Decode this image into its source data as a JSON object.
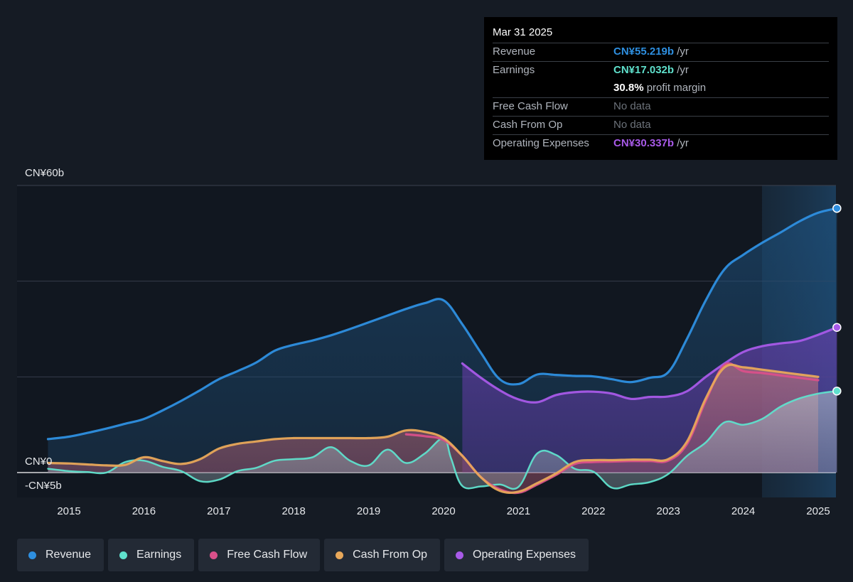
{
  "tooltip": {
    "date": "Mar 31 2025",
    "rows": [
      {
        "label": "Revenue",
        "value": "CN¥55.219b",
        "unit": " /yr",
        "color": "#2e8fe0"
      },
      {
        "label": "Earnings",
        "value": "CN¥17.032b",
        "unit": " /yr",
        "color": "#5fe0cc"
      },
      {
        "label": "",
        "value": "30.8%",
        "unit": " profit margin",
        "color": "#ffffff"
      },
      {
        "label": "Free Cash Flow",
        "value": "No data",
        "unit": "",
        "color": "#6c727a"
      },
      {
        "label": "Cash From Op",
        "value": "No data",
        "unit": "",
        "color": "#6c727a"
      },
      {
        "label": "Operating Expenses",
        "value": "CN¥30.337b",
        "unit": " /yr",
        "color": "#a85ae8"
      }
    ]
  },
  "chart_data": {
    "type": "area",
    "y_tick_labels": [
      "CN¥60b",
      "CN¥0",
      "-CN¥5b"
    ],
    "x_tick_labels": [
      "2015",
      "2016",
      "2017",
      "2018",
      "2019",
      "2020",
      "2021",
      "2022",
      "2023",
      "2024",
      "2025"
    ],
    "ylim": [
      -5,
      60
    ],
    "xlim": [
      2014.5,
      2025.25
    ],
    "grid": true,
    "legend_position": "bottom",
    "series": [
      {
        "name": "Revenue",
        "color": "#2e8fe0",
        "x": [
          2014.72,
          2015.0,
          2015.25,
          2015.5,
          2015.75,
          2016.0,
          2016.25,
          2016.5,
          2016.75,
          2017.0,
          2017.25,
          2017.5,
          2017.75,
          2018.0,
          2018.25,
          2018.5,
          2018.75,
          2019.0,
          2019.25,
          2019.5,
          2019.75,
          2020.0,
          2020.25,
          2020.5,
          2020.75,
          2021.0,
          2021.25,
          2021.5,
          2021.75,
          2022.0,
          2022.25,
          2022.5,
          2022.75,
          2023.0,
          2023.25,
          2023.5,
          2023.75,
          2024.0,
          2024.25,
          2024.5,
          2024.75,
          2025.0,
          2025.25
        ],
        "values": [
          7.0,
          7.5,
          8.3,
          9.2,
          10.2,
          11.2,
          13.0,
          15.0,
          17.2,
          19.5,
          21.2,
          23.0,
          25.5,
          26.7,
          27.6,
          28.7,
          30.0,
          31.4,
          32.8,
          34.2,
          35.4,
          36.0,
          31.0,
          25.0,
          19.5,
          18.5,
          20.5,
          20.4,
          20.2,
          20.1,
          19.5,
          18.9,
          19.8,
          21.0,
          28.0,
          36.0,
          42.5,
          45.5,
          48.0,
          50.2,
          52.5,
          54.3,
          55.219
        ]
      },
      {
        "name": "Earnings",
        "color": "#5fe0cc",
        "x": [
          2014.72,
          2015.0,
          2015.25,
          2015.5,
          2015.75,
          2016.0,
          2016.25,
          2016.5,
          2016.75,
          2017.0,
          2017.25,
          2017.5,
          2017.75,
          2018.0,
          2018.25,
          2018.5,
          2018.75,
          2019.0,
          2019.25,
          2019.5,
          2019.75,
          2020.0,
          2020.1,
          2020.25,
          2020.5,
          2020.75,
          2021.0,
          2021.25,
          2021.5,
          2021.75,
          2022.0,
          2022.25,
          2022.5,
          2022.75,
          2023.0,
          2023.25,
          2023.5,
          2023.75,
          2024.0,
          2024.25,
          2024.5,
          2024.75,
          2025.0,
          2025.25
        ],
        "values": [
          0.8,
          0.3,
          0.1,
          0.0,
          2.2,
          2.5,
          1.2,
          0.3,
          -1.8,
          -1.5,
          0.3,
          1.0,
          2.5,
          2.8,
          3.2,
          5.3,
          2.5,
          1.5,
          4.8,
          2.0,
          4.0,
          7.2,
          3.0,
          -2.8,
          -2.9,
          -2.5,
          -3.0,
          4.0,
          3.7,
          0.8,
          0.2,
          -3.2,
          -2.5,
          -2.0,
          -0.3,
          3.5,
          6.3,
          10.5,
          10.0,
          11.2,
          13.8,
          15.5,
          16.5,
          17.032
        ]
      },
      {
        "name": "Free Cash Flow",
        "color": "#d9508a",
        "x": [
          2019.5,
          2019.75,
          2020.0,
          2020.25,
          2020.5,
          2020.75,
          2021.0,
          2021.25,
          2021.5,
          2021.75,
          2022.0,
          2022.25,
          2022.5,
          2022.75,
          2023.0,
          2023.25,
          2023.5,
          2023.75,
          2024.0,
          2024.25,
          2024.5,
          2024.75,
          2025.0
        ],
        "values": [
          8.0,
          7.6,
          6.8,
          3.5,
          -1.0,
          -3.5,
          -4.2,
          -2.5,
          -0.5,
          1.8,
          2.2,
          2.3,
          2.4,
          2.4,
          2.5,
          6.0,
          15.0,
          22.5,
          21.2,
          20.8,
          20.3,
          19.8,
          19.3
        ]
      },
      {
        "name": "Cash From Op",
        "color": "#e8a85a",
        "x": [
          2014.72,
          2015.0,
          2015.25,
          2015.5,
          2015.75,
          2016.0,
          2016.25,
          2016.5,
          2016.75,
          2017.0,
          2017.25,
          2017.5,
          2017.75,
          2018.0,
          2018.25,
          2018.5,
          2018.75,
          2019.0,
          2019.25,
          2019.5,
          2019.75,
          2020.0,
          2020.25,
          2020.5,
          2020.75,
          2021.0,
          2021.25,
          2021.5,
          2021.75,
          2022.0,
          2022.25,
          2022.5,
          2022.75,
          2023.0,
          2023.25,
          2023.5,
          2023.75,
          2024.0,
          2024.25,
          2024.5,
          2024.75,
          2025.0
        ],
        "values": [
          2.0,
          1.9,
          1.7,
          1.5,
          1.6,
          3.2,
          2.4,
          1.8,
          2.8,
          5.0,
          6.0,
          6.5,
          7.0,
          7.2,
          7.2,
          7.2,
          7.2,
          7.2,
          7.5,
          8.8,
          8.5,
          7.2,
          3.5,
          -1.0,
          -3.8,
          -4.0,
          -2.2,
          -0.2,
          2.2,
          2.6,
          2.6,
          2.7,
          2.7,
          2.8,
          6.5,
          15.5,
          22.0,
          22.0,
          21.5,
          21.0,
          20.5,
          20.0
        ]
      },
      {
        "name": "Operating Expenses",
        "color": "#a85ae8",
        "x": [
          2020.25,
          2020.5,
          2020.75,
          2021.0,
          2021.25,
          2021.5,
          2021.75,
          2022.0,
          2022.25,
          2022.5,
          2022.75,
          2023.0,
          2023.25,
          2023.5,
          2023.75,
          2024.0,
          2024.25,
          2024.5,
          2024.75,
          2025.0,
          2025.25
        ],
        "values": [
          22.8,
          19.8,
          17.2,
          15.3,
          14.7,
          16.2,
          16.8,
          16.9,
          16.5,
          15.4,
          15.8,
          15.9,
          17.0,
          20.0,
          22.8,
          25.2,
          26.4,
          27.0,
          27.5,
          28.8,
          30.337
        ]
      }
    ]
  },
  "legend": [
    {
      "label": "Revenue",
      "color": "#2e8fe0"
    },
    {
      "label": "Earnings",
      "color": "#5fe0cc"
    },
    {
      "label": "Free Cash Flow",
      "color": "#d9508a"
    },
    {
      "label": "Cash From Op",
      "color": "#e8a85a"
    },
    {
      "label": "Operating Expenses",
      "color": "#a85ae8"
    }
  ]
}
